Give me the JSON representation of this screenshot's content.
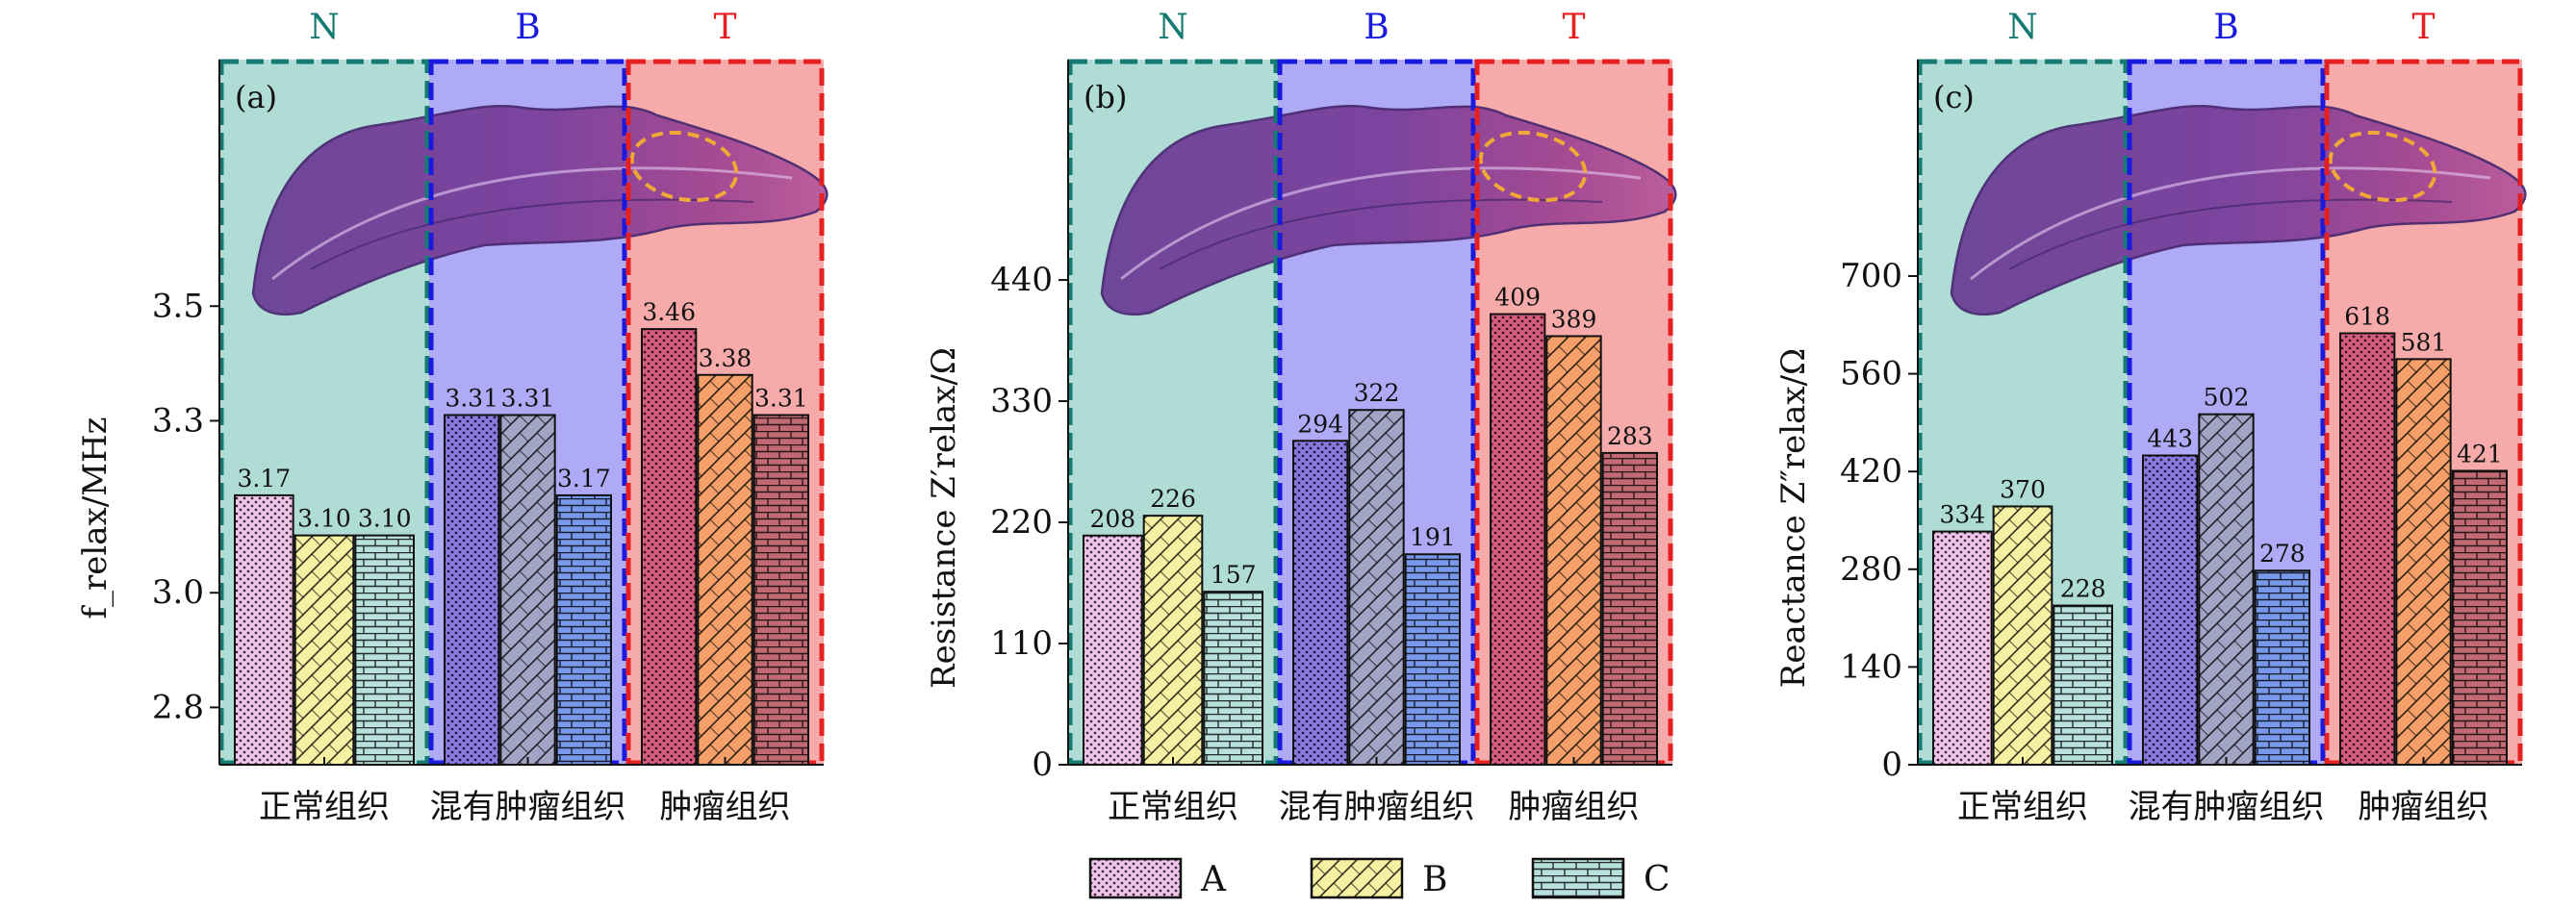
{
  "chart_data": [
    {
      "type": "bar",
      "panel_label": "(a)",
      "zones": [
        "N",
        "B",
        "T"
      ],
      "categories": [
        "正常组织",
        "混有肿瘤组织",
        "肿瘤组织"
      ],
      "series": [
        {
          "name": "A",
          "values": [
            3.17,
            3.31,
            3.46
          ]
        },
        {
          "name": "B",
          "values": [
            3.1,
            3.31,
            3.38
          ]
        },
        {
          "name": "C",
          "values": [
            3.1,
            3.17,
            3.31
          ]
        }
      ],
      "value_labels": [
        [
          "3.17",
          "3.10",
          "3.10"
        ],
        [
          "3.31",
          "3.31",
          "3.17"
        ],
        [
          "3.46",
          "3.38",
          "3.31"
        ]
      ],
      "yticks": [
        "2.8",
        "3.0",
        "3.3",
        "3.5"
      ],
      "ylabel": "f_relax/MHz",
      "ylim": [
        2.7,
        3.93
      ]
    },
    {
      "type": "bar",
      "panel_label": "(b)",
      "zones": [
        "N",
        "B",
        "T"
      ],
      "categories": [
        "正常组织",
        "混有肿瘤组织",
        "肿瘤组织"
      ],
      "series": [
        {
          "name": "A",
          "values": [
            208,
            294,
            409
          ]
        },
        {
          "name": "B",
          "values": [
            226,
            322,
            389
          ]
        },
        {
          "name": "C",
          "values": [
            157,
            191,
            283
          ]
        }
      ],
      "value_labels": [
        [
          "208",
          "226",
          "157"
        ],
        [
          "294",
          "322",
          "191"
        ],
        [
          "409",
          "389",
          "283"
        ]
      ],
      "yticks": [
        "0",
        "110",
        "220",
        "330",
        "440"
      ],
      "ylabel": "Resistance Z′relax/Ω",
      "ylim": [
        0,
        640
      ]
    },
    {
      "type": "bar",
      "panel_label": "(c)",
      "zones": [
        "N",
        "B",
        "T"
      ],
      "categories": [
        "正常组织",
        "混有肿瘤组织",
        "肿瘤组织"
      ],
      "series": [
        {
          "name": "A",
          "values": [
            334,
            443,
            618
          ]
        },
        {
          "name": "B",
          "values": [
            370,
            502,
            581
          ]
        },
        {
          "name": "C",
          "values": [
            228,
            278,
            421
          ]
        }
      ],
      "value_labels": [
        [
          "334",
          "370",
          "228"
        ],
        [
          "443",
          "502",
          "278"
        ],
        [
          "618",
          "581",
          "421"
        ]
      ],
      "yticks": [
        "0",
        "140",
        "280",
        "420",
        "560",
        "700"
      ],
      "ylabel": "Reactance Z″relax/Ω",
      "ylim": [
        0,
        1010
      ]
    }
  ],
  "legend": [
    "A",
    "B",
    "C"
  ],
  "colors": {
    "zone_N": "#157a72",
    "zone_B": "#1a1adf",
    "zone_T": "#e52020",
    "bg_N": "#b0dcd6",
    "bg_B": "#aeaaf6",
    "bg_T": "#f7aaaa",
    "bar_A_N": "#f1c4ea",
    "bar_B_N": "#f5f0a2",
    "bar_C_N": "#b8e0dc",
    "bar_A_B": "#8a7ae0",
    "bar_B_B": "#a2a4c6",
    "bar_C_B": "#7898ea",
    "bar_A_T": "#d85c7e",
    "bar_B_T": "#f5a06a",
    "bar_C_T": "#c26a74"
  }
}
